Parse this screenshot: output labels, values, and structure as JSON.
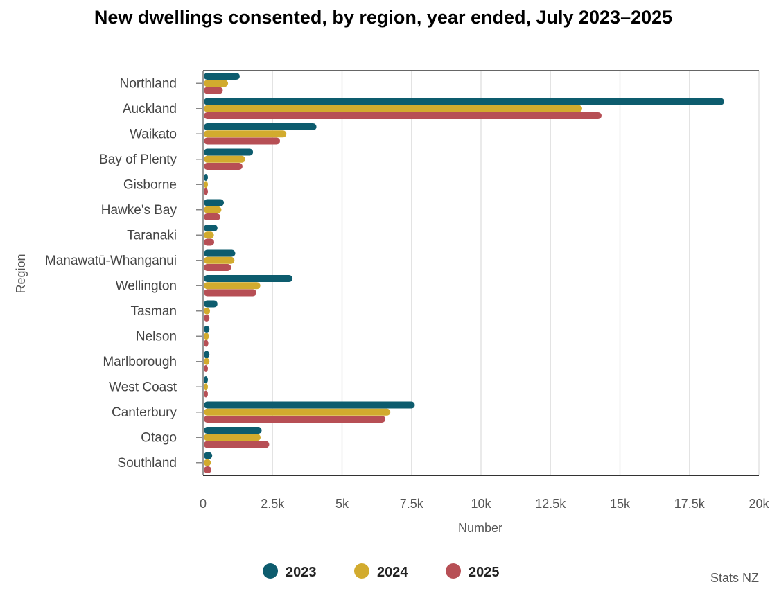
{
  "chart_data": {
    "type": "bar",
    "orientation": "horizontal",
    "title": "New dwellings consented, by region, year ended, July 2023–2025",
    "xlabel": "Number",
    "ylabel": "Region",
    "xlim": [
      0,
      20000
    ],
    "x_ticks": [
      0,
      2500,
      5000,
      7500,
      10000,
      12500,
      15000,
      17500,
      20000
    ],
    "x_tick_labels": [
      "0",
      "2.5k",
      "5k",
      "7.5k",
      "10k",
      "12.5k",
      "15k",
      "17.5k",
      "20k"
    ],
    "categories": [
      "Northland",
      "Auckland",
      "Waikato",
      "Bay of Plenty",
      "Gisborne",
      "Hawke's Bay",
      "Taranaki",
      "Manawatū-Whanganui",
      "Wellington",
      "Tasman",
      "Nelson",
      "Marlborough",
      "West Coast",
      "Canterbury",
      "Otago",
      "Southland"
    ],
    "series": [
      {
        "name": "2023",
        "color": "#0d5c6e",
        "values": [
          1320,
          18750,
          4080,
          1800,
          140,
          750,
          520,
          1160,
          3220,
          520,
          230,
          230,
          170,
          7620,
          2110,
          330
        ]
      },
      {
        "name": "2024",
        "color": "#d2ab2e",
        "values": [
          900,
          13640,
          3000,
          1520,
          130,
          660,
          390,
          1130,
          2060,
          250,
          210,
          230,
          170,
          6740,
          2070,
          280
        ]
      },
      {
        "name": "2025",
        "color": "#b74f55",
        "values": [
          710,
          14340,
          2770,
          1420,
          80,
          620,
          400,
          1010,
          1920,
          230,
          190,
          160,
          140,
          6560,
          2380,
          300
        ]
      }
    ],
    "legend": "bottom-center",
    "grid": "vertical"
  },
  "credit": "Stats NZ"
}
